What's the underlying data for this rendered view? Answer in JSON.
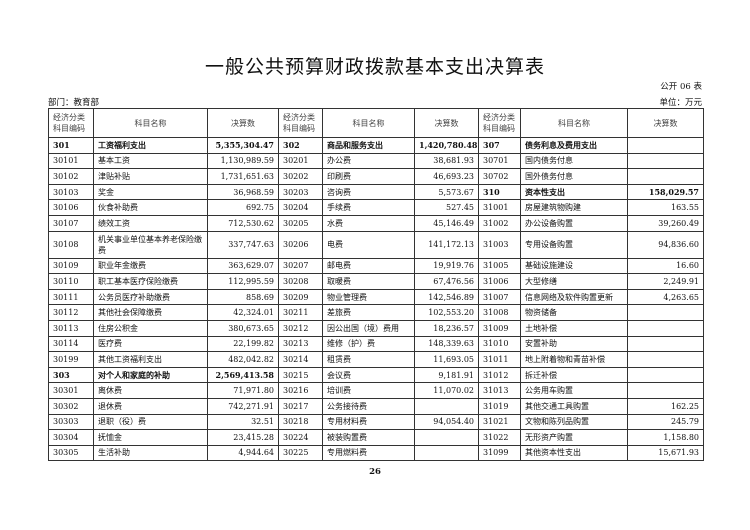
{
  "title": "一般公共预算财政拨款基本支出决算表",
  "form_no": "公开 06 表",
  "department": "部门：教育部",
  "unit": "单位：万元",
  "headers": {
    "code": "经济分类科目编码",
    "name": "科目名称",
    "amount": "决算数"
  },
  "rows": [
    {
      "c": [
        "301",
        "工资福利支出",
        "5,355,304.47",
        "302",
        "商品和服务支出",
        "1,420,780.48",
        "307",
        "债务利息及费用支出",
        ""
      ],
      "b": [
        true,
        true,
        true
      ]
    },
    {
      "c": [
        "30101",
        "基本工资",
        "1,130,989.59",
        "30201",
        "办公费",
        "38,681.93",
        "30701",
        "国内债务付息",
        ""
      ],
      "b": [
        false,
        false,
        false
      ]
    },
    {
      "c": [
        "30102",
        "津贴补贴",
        "1,731,651.63",
        "30202",
        "印刷费",
        "46,693.23",
        "30702",
        "国外债务付息",
        ""
      ],
      "b": [
        false,
        false,
        false
      ]
    },
    {
      "c": [
        "30103",
        "奖金",
        "36,968.59",
        "30203",
        "咨询费",
        "5,573.67",
        "310",
        "资本性支出",
        "158,029.57"
      ],
      "b": [
        false,
        false,
        true
      ]
    },
    {
      "c": [
        "30106",
        "伙食补助费",
        "692.75",
        "30204",
        "手续费",
        "527.45",
        "31001",
        "房屋建筑物购建",
        "163.55"
      ],
      "b": [
        false,
        false,
        false
      ]
    },
    {
      "c": [
        "30107",
        "绩效工资",
        "712,530.62",
        "30205",
        "水费",
        "45,146.49",
        "31002",
        "办公设备购置",
        "39,260.49"
      ],
      "b": [
        false,
        false,
        false
      ]
    },
    {
      "c": [
        "30108",
        "机关事业单位基本养老保险缴费",
        "337,747.63",
        "30206",
        "电费",
        "141,172.13",
        "31003",
        "专用设备购置",
        "94,836.60"
      ],
      "b": [
        false,
        false,
        false
      ],
      "double": true
    },
    {
      "c": [
        "30109",
        "职业年金缴费",
        "363,629.07",
        "30207",
        "邮电费",
        "19,919.76",
        "31005",
        "基础设施建设",
        "16.60"
      ],
      "b": [
        false,
        false,
        false
      ]
    },
    {
      "c": [
        "30110",
        "职工基本医疗保险缴费",
        "112,995.59",
        "30208",
        "取暖费",
        "67,476.56",
        "31006",
        "大型修缮",
        "2,249.91"
      ],
      "b": [
        false,
        false,
        false
      ]
    },
    {
      "c": [
        "30111",
        "公务员医疗补助缴费",
        "858.69",
        "30209",
        "物业管理费",
        "142,546.89",
        "31007",
        "信息网络及软件购置更新",
        "4,263.65"
      ],
      "b": [
        false,
        false,
        false
      ]
    },
    {
      "c": [
        "30112",
        "其他社会保障缴费",
        "42,324.01",
        "30211",
        "差旅费",
        "102,553.20",
        "31008",
        "物资储备",
        ""
      ],
      "b": [
        false,
        false,
        false
      ]
    },
    {
      "c": [
        "30113",
        "住房公积金",
        "380,673.65",
        "30212",
        "因公出国（境）费用",
        "18,236.57",
        "31009",
        "土地补偿",
        ""
      ],
      "b": [
        false,
        false,
        false
      ]
    },
    {
      "c": [
        "30114",
        "医疗费",
        "22,199.82",
        "30213",
        "维修（护）费",
        "148,339.63",
        "31010",
        "安置补助",
        ""
      ],
      "b": [
        false,
        false,
        false
      ]
    },
    {
      "c": [
        "30199",
        "其他工资福利支出",
        "482,042.82",
        "30214",
        "租赁费",
        "11,693.05",
        "31011",
        "地上附着物和青苗补偿",
        ""
      ],
      "b": [
        false,
        false,
        false
      ]
    },
    {
      "c": [
        "303",
        "对个人和家庭的补助",
        "2,569,413.58",
        "30215",
        "会议费",
        "9,181.91",
        "31012",
        "拆迁补偿",
        ""
      ],
      "b": [
        true,
        false,
        false
      ]
    },
    {
      "c": [
        "30301",
        "离休费",
        "71,971.80",
        "30216",
        "培训费",
        "11,070.02",
        "31013",
        "公务用车购置",
        ""
      ],
      "b": [
        false,
        false,
        false
      ]
    },
    {
      "c": [
        "30302",
        "退休费",
        "742,271.91",
        "30217",
        "公务接待费",
        "",
        "31019",
        "其他交通工具购置",
        "162.25"
      ],
      "b": [
        false,
        false,
        false
      ]
    },
    {
      "c": [
        "30303",
        "退职（役）费",
        "32.51",
        "30218",
        "专用材料费",
        "94,054.40",
        "31021",
        "文物和陈列品购置",
        "245.79"
      ],
      "b": [
        false,
        false,
        false
      ]
    },
    {
      "c": [
        "30304",
        "抚恤金",
        "23,415.28",
        "30224",
        "被装购置费",
        "",
        "31022",
        "无形资产购置",
        "1,158.80"
      ],
      "b": [
        false,
        false,
        false
      ]
    },
    {
      "c": [
        "30305",
        "生活补助",
        "4,944.64",
        "30225",
        "专用燃料费",
        "",
        "31099",
        "其他资本性支出",
        "15,671.93"
      ],
      "b": [
        false,
        false,
        false
      ]
    }
  ],
  "page_number": "26"
}
